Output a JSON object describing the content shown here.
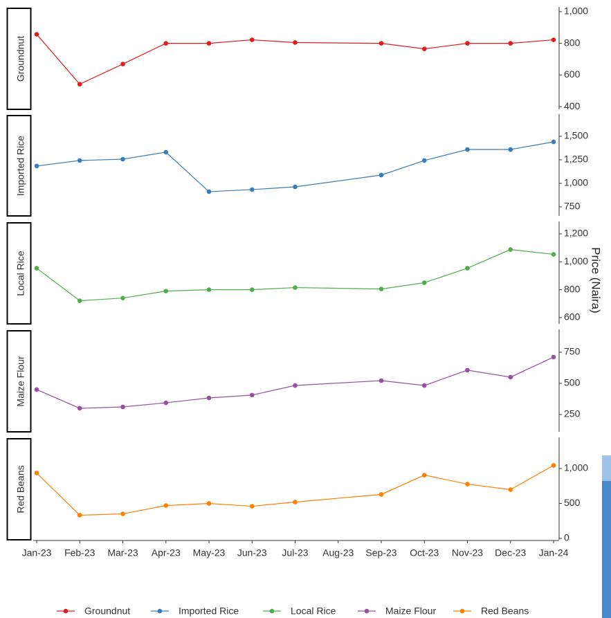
{
  "chart_data": {
    "type": "line",
    "y_label": "Price (Naira)",
    "xticks": [
      "Jan-23",
      "Feb-23",
      "Mar-23",
      "Apr-23",
      "May-23",
      "Jun-23",
      "Jul-23",
      "Aug-23",
      "Sep-23",
      "Oct-23",
      "Nov-23",
      "Dec-23",
      "Jan-24"
    ],
    "x": [
      "Jan-23",
      "Feb-23",
      "Mar-23",
      "Apr-23",
      "May-23",
      "Jun-23",
      "Jul-23",
      "Sep-23",
      "Oct-23",
      "Nov-23",
      "Dec-23",
      "Jan-24"
    ],
    "series": [
      {
        "name": "Groundnut",
        "color": "#e41a1c",
        "values": [
          857,
          542,
          669,
          800,
          800,
          822,
          805,
          800,
          765,
          800,
          800,
          822
        ],
        "ylim": [
          383,
          1030
        ],
        "yticks": [
          {
            "value": 1000,
            "label": "1,000"
          },
          800,
          600,
          400
        ]
      },
      {
        "name": "Imported Rice",
        "color": "#377eb8",
        "values": [
          1184,
          1243,
          1257,
          1331,
          912,
          934,
          963,
          1088,
          1243,
          1360,
          1360,
          1441
        ],
        "ylim": [
          654,
          1735
        ],
        "yticks": [
          {
            "value": 1500,
            "label": "1,500"
          },
          {
            "value": 1250,
            "label": "1,250"
          },
          {
            "value": 1000,
            "label": "1,000"
          },
          750
        ]
      },
      {
        "name": "Local Rice",
        "color": "#4daf4a",
        "values": [
          954,
          721,
          740,
          790,
          800,
          800,
          815,
          805,
          850,
          954,
          1088,
          1053
        ],
        "ylim": [
          555,
          1289
        ],
        "yticks": [
          {
            "value": 1200,
            "label": "1,200"
          },
          {
            "value": 1000,
            "label": "1,000"
          },
          800,
          600
        ]
      },
      {
        "name": "Maize Flour",
        "color": "#984ea3",
        "values": [
          450,
          300,
          311,
          344,
          383,
          406,
          483,
          522,
          483,
          606,
          550,
          711
        ],
        "ylim": [
          111,
          933
        ],
        "yticks": [
          750,
          500,
          250
        ]
      },
      {
        "name": "Red Beans",
        "color": "#ff7f00",
        "values": [
          936,
          332,
          351,
          470,
          500,
          460,
          520,
          629,
          906,
          777,
          698,
          1045
        ],
        "ylim": [
          -20,
          1446
        ],
        "yticks": [
          {
            "value": 1000,
            "label": "1,000"
          },
          500,
          0
        ]
      }
    ]
  }
}
